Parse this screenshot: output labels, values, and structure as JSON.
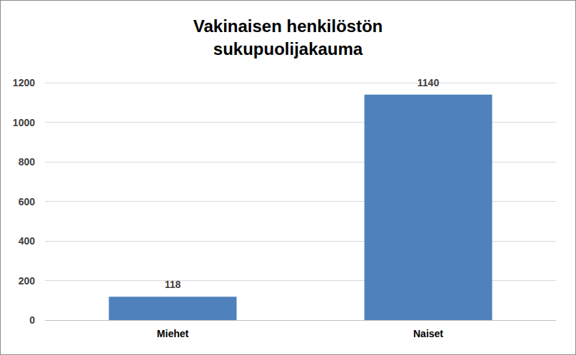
{
  "chart_data": {
    "type": "bar",
    "title": "Vakinaisen henkilöstön\nsukupuolijakauma",
    "categories": [
      "Miehet",
      "Naiset"
    ],
    "values": [
      118,
      1140
    ],
    "color": "#4f81bd",
    "ylim": [
      0,
      1200
    ],
    "yticks": [
      0,
      200,
      400,
      600,
      800,
      1000,
      1200
    ],
    "grid": true,
    "data_labels": true
  }
}
